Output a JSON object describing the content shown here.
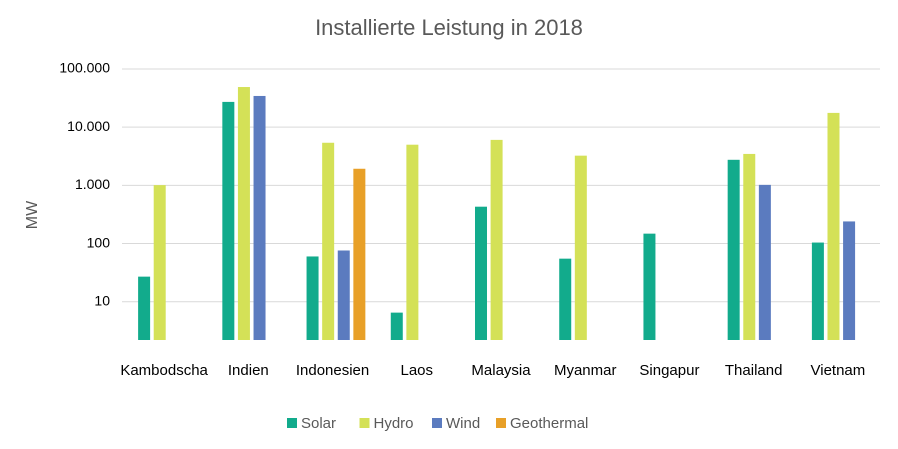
{
  "chart_data": {
    "type": "bar",
    "title": "Installierte Leistung in 2018",
    "y_label": "MW",
    "categories": [
      "Kambodscha",
      "Indien",
      "Indonesien",
      "Laos",
      "Malaysia",
      "Myanmar",
      "Singapur",
      "Thailand",
      "Vietnam"
    ],
    "series": [
      {
        "name": "Solar",
        "color": "#12ab8c",
        "values": [
          27,
          27200,
          60,
          6.5,
          430,
          55,
          148,
          2750,
          104
        ]
      },
      {
        "name": "Hydro",
        "color": "#d4e157",
        "values": [
          1010,
          49000,
          5400,
          5000,
          6050,
          3240,
          null,
          3470,
          17600
        ]
      },
      {
        "name": "Wind",
        "color": "#5b7bbf",
        "values": [
          null,
          34400,
          76,
          null,
          null,
          null,
          null,
          1020,
          240
        ]
      },
      {
        "name": "Geothermal",
        "color": "#e8a028",
        "values": [
          null,
          null,
          1930,
          null,
          null,
          null,
          null,
          null,
          null
        ]
      }
    ],
    "log_scale": true,
    "ylim": [
      2.2,
      100000
    ],
    "yticks": [
      {
        "value": 100000,
        "label": "100.000"
      },
      {
        "value": 10000,
        "label": "10.000"
      },
      {
        "value": 1000,
        "label": "1.000"
      },
      100,
      10
    ],
    "grid": true,
    "legend": "bottom"
  }
}
